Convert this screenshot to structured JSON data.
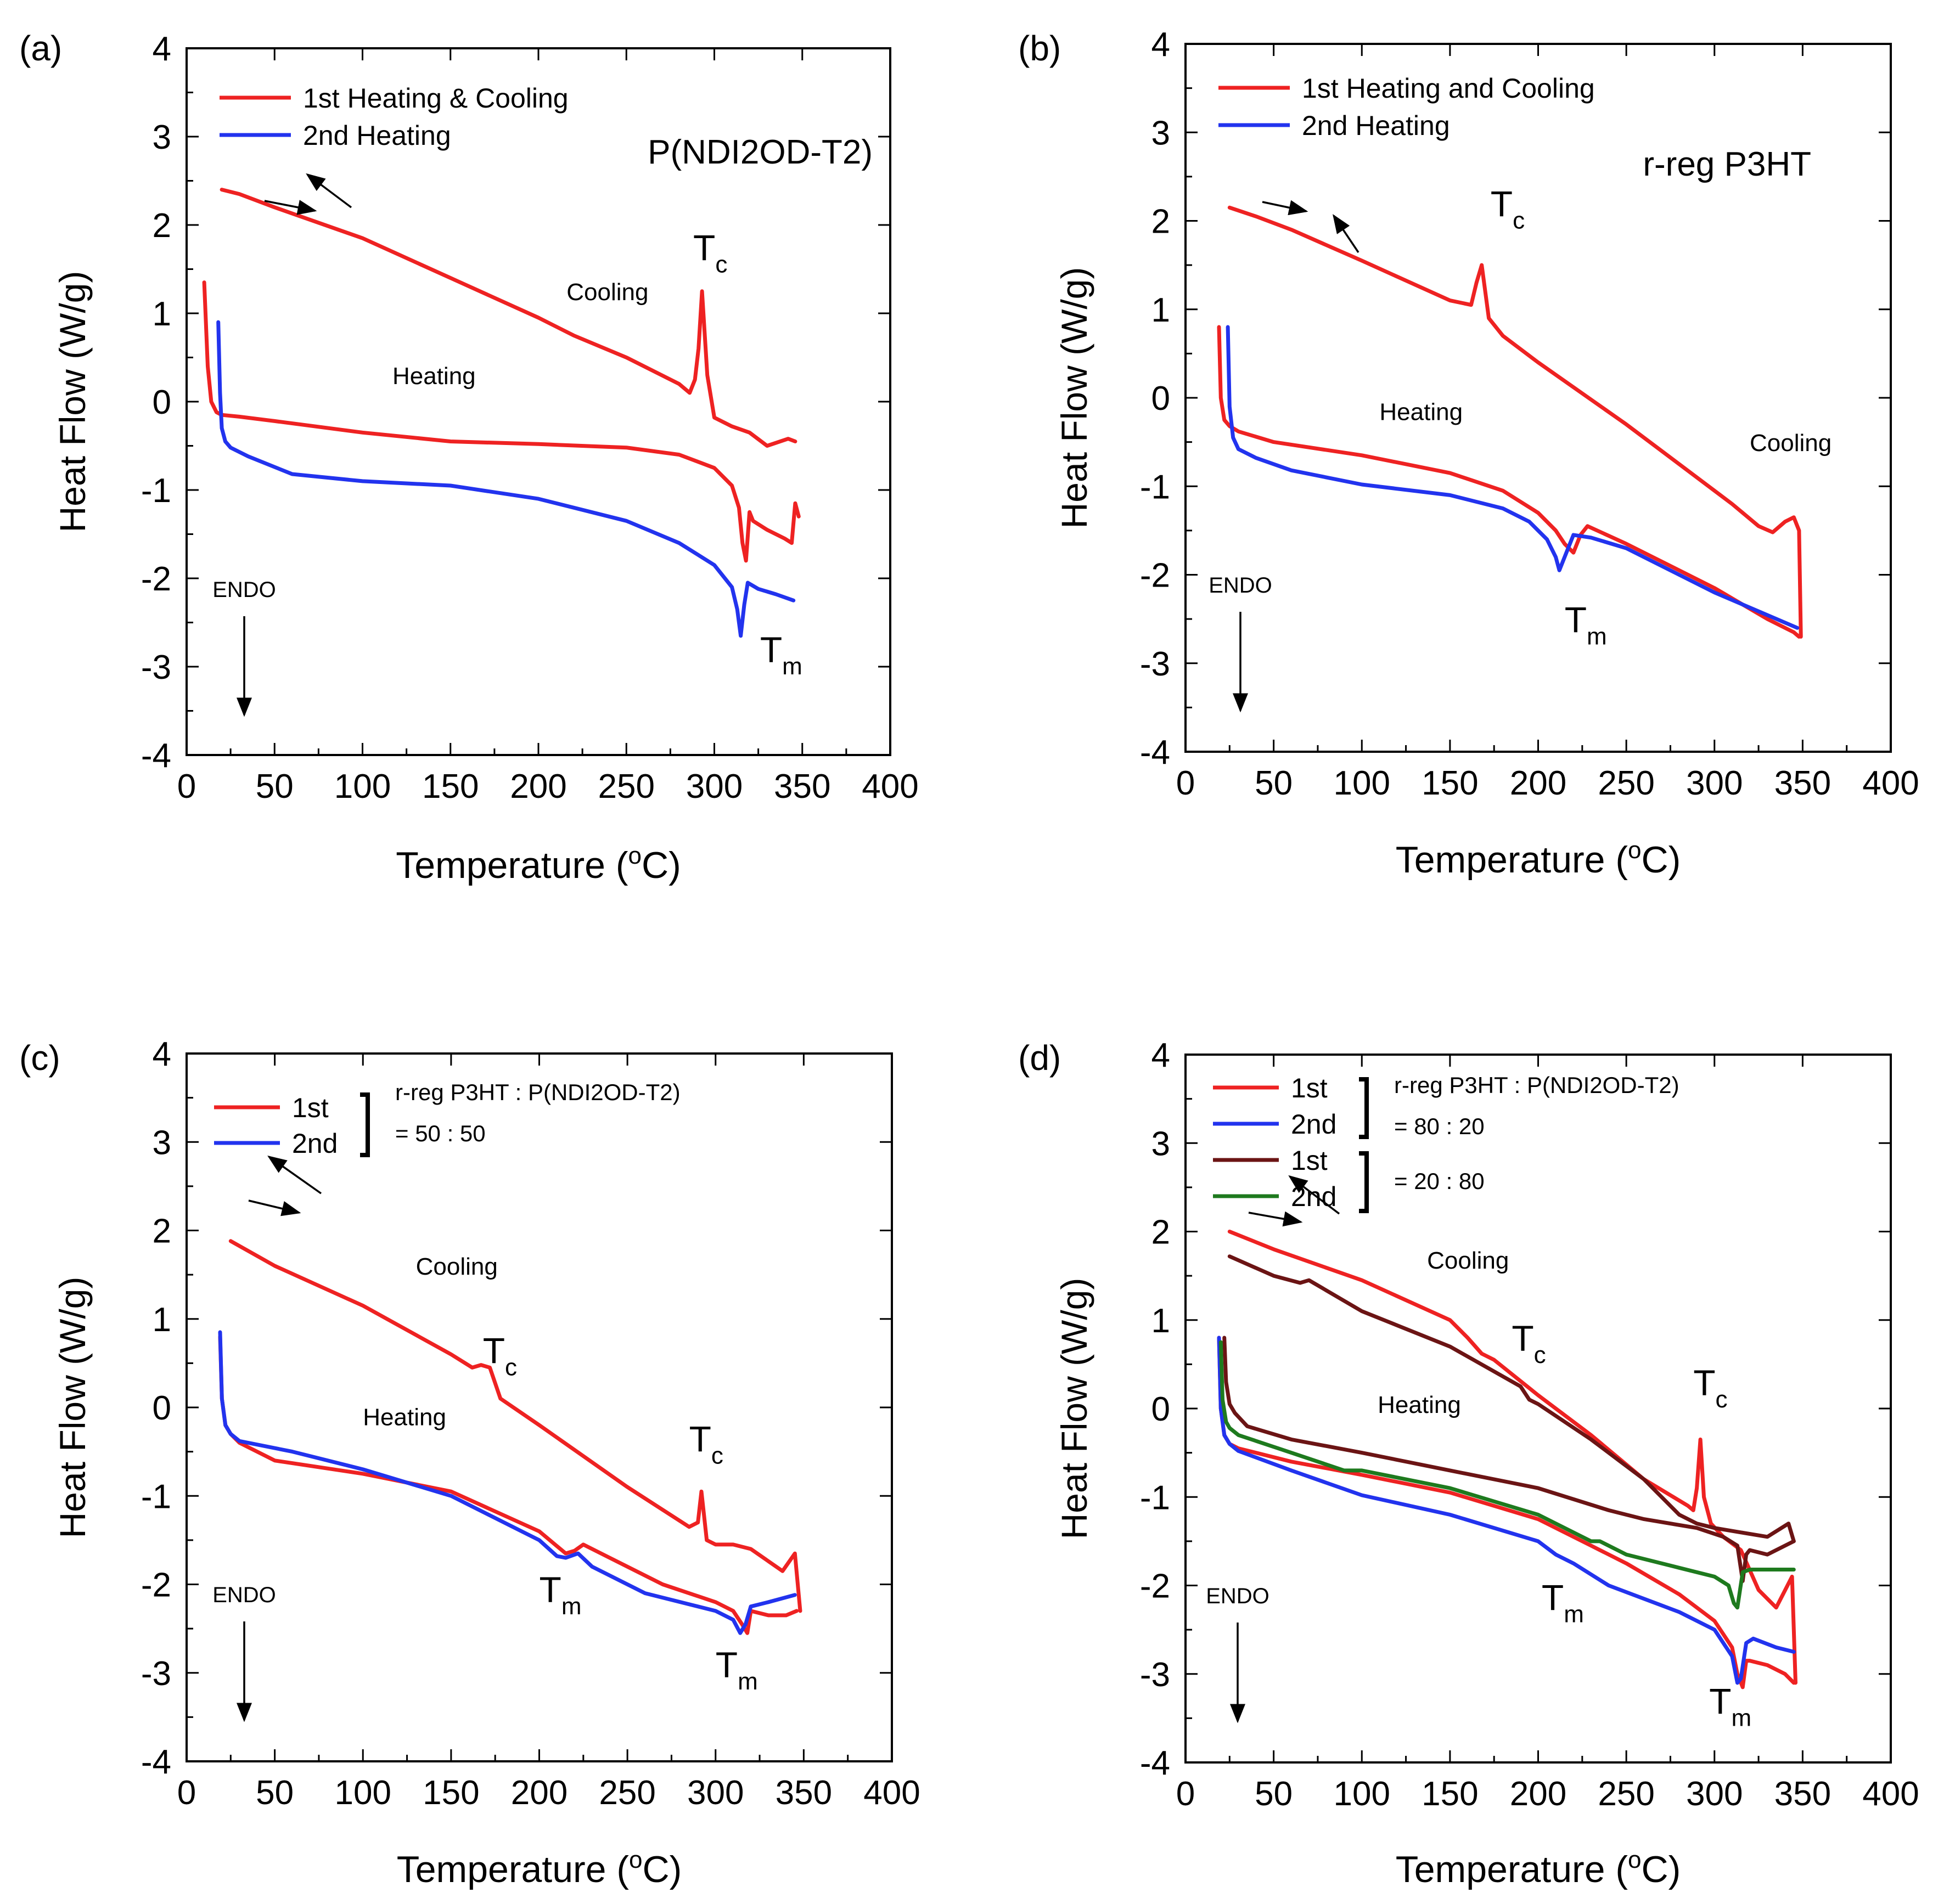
{
  "figure": {
    "description_free": true
  },
  "common": {
    "ylabel": "Heat Flow (W/g)",
    "xlabel_prefix": "Temperature (",
    "xlabel_degree": "o",
    "xlabel_suffix": "C)",
    "endo_label": "ENDO",
    "colors": {
      "red": "#ee2222",
      "blue": "#2233ee",
      "darkred": "#6b1414",
      "green": "#1e7a1e"
    }
  },
  "chart_data": [
    {
      "id": "a",
      "panel_label": "(a)",
      "type": "line",
      "title": "P(NDI2OD-T2)",
      "xlim": [
        0,
        400
      ],
      "ylim": [
        -4,
        4
      ],
      "xticks": [
        0,
        50,
        100,
        150,
        200,
        250,
        300,
        350,
        400
      ],
      "yticks": [
        4,
        3,
        2,
        1,
        0,
        -1,
        -2,
        -3,
        -4
      ],
      "legend": [
        {
          "label": "1st Heating & Cooling",
          "color": "#ee2222"
        },
        {
          "label": "2nd Heating",
          "color": "#2233ee"
        }
      ],
      "series": [
        {
          "name": "1st Heating (red)",
          "color": "#ee2222",
          "x": [
            10,
            12,
            14,
            17,
            20,
            30,
            50,
            100,
            150,
            200,
            250,
            280,
            300,
            310,
            314,
            316,
            318,
            320,
            322,
            330,
            340,
            344,
            346,
            348
          ],
          "y": [
            1.35,
            0.4,
            0.0,
            -0.12,
            -0.15,
            -0.17,
            -0.22,
            -0.35,
            -0.45,
            -0.48,
            -0.52,
            -0.6,
            -0.75,
            -0.95,
            -1.2,
            -1.6,
            -1.8,
            -1.25,
            -1.35,
            -1.45,
            -1.55,
            -1.6,
            -1.15,
            -1.3
          ]
        },
        {
          "name": "1st Cooling (red)",
          "color": "#ee2222",
          "x": [
            346,
            342,
            330,
            320,
            310,
            300,
            296,
            293,
            291,
            289,
            286,
            280,
            250,
            220,
            200,
            150,
            100,
            50,
            30,
            20
          ],
          "y": [
            -0.45,
            -0.42,
            -0.5,
            -0.35,
            -0.28,
            -0.18,
            0.3,
            1.25,
            0.6,
            0.25,
            0.1,
            0.2,
            0.5,
            0.75,
            0.95,
            1.4,
            1.85,
            2.2,
            2.35,
            2.4
          ]
        },
        {
          "name": "2nd Heating (blue)",
          "color": "#2233ee",
          "x": [
            18,
            19,
            20,
            22,
            25,
            35,
            60,
            100,
            150,
            200,
            250,
            280,
            300,
            310,
            313,
            315,
            317,
            319,
            325,
            335,
            345
          ],
          "y": [
            0.9,
            0.1,
            -0.3,
            -0.45,
            -0.52,
            -0.62,
            -0.82,
            -0.9,
            -0.95,
            -1.1,
            -1.35,
            -1.6,
            -1.85,
            -2.1,
            -2.35,
            -2.65,
            -2.3,
            -2.05,
            -2.12,
            -2.18,
            -2.25
          ]
        }
      ],
      "annotations": [
        {
          "text": "Cooling",
          "x": 216,
          "y": 1.15
        },
        {
          "text": "Heating",
          "x": 117,
          "y": 0.2
        },
        {
          "text": "T",
          "sub": "c",
          "x": 288,
          "y": 1.6
        },
        {
          "text": "T",
          "sub": "m",
          "x": 326,
          "y": -2.95
        }
      ]
    },
    {
      "id": "b",
      "panel_label": "(b)",
      "type": "line",
      "title": "r-reg P3HT",
      "xlim": [
        0,
        400
      ],
      "ylim": [
        -4,
        4
      ],
      "xticks": [
        0,
        50,
        100,
        150,
        200,
        250,
        300,
        350,
        400
      ],
      "yticks": [
        4,
        3,
        2,
        1,
        0,
        -1,
        -2,
        -3,
        -4
      ],
      "legend": [
        {
          "label": "1st Heating and Cooling",
          "color": "#ee2222"
        },
        {
          "label": "2nd Heating",
          "color": "#2233ee"
        }
      ],
      "series": [
        {
          "name": "1st Heating (red)",
          "color": "#ee2222",
          "x": [
            19,
            20,
            22,
            25,
            30,
            50,
            100,
            150,
            180,
            200,
            210,
            215,
            220,
            224,
            228,
            250,
            300,
            330,
            345,
            348
          ],
          "y": [
            0.8,
            0.0,
            -0.25,
            -0.32,
            -0.38,
            -0.5,
            -0.65,
            -0.85,
            -1.05,
            -1.3,
            -1.5,
            -1.65,
            -1.75,
            -1.55,
            -1.45,
            -1.65,
            -2.15,
            -2.5,
            -2.65,
            -2.7
          ]
        },
        {
          "name": "1st Cooling (red)",
          "color": "#ee2222",
          "x": [
            349,
            348,
            345,
            340,
            333,
            325,
            310,
            300,
            250,
            200,
            180,
            172,
            168,
            165,
            162,
            150,
            100,
            60,
            40,
            25
          ],
          "y": [
            -2.7,
            -1.5,
            -1.35,
            -1.4,
            -1.52,
            -1.45,
            -1.2,
            -1.05,
            -0.3,
            0.4,
            0.7,
            0.9,
            1.5,
            1.3,
            1.05,
            1.1,
            1.55,
            1.9,
            2.05,
            2.15
          ]
        },
        {
          "name": "2nd Heating (blue)",
          "color": "#2233ee",
          "x": [
            24,
            25,
            27,
            30,
            40,
            60,
            100,
            150,
            180,
            195,
            205,
            210,
            212,
            215,
            220,
            230,
            250,
            300,
            347
          ],
          "y": [
            0.8,
            -0.1,
            -0.45,
            -0.58,
            -0.68,
            -0.82,
            -0.98,
            -1.1,
            -1.25,
            -1.4,
            -1.6,
            -1.8,
            -1.95,
            -1.8,
            -1.55,
            -1.58,
            -1.7,
            -2.2,
            -2.6
          ]
        }
      ],
      "annotations": [
        {
          "text": "Cooling",
          "x": 320,
          "y": -0.6
        },
        {
          "text": "Heating",
          "x": 110,
          "y": -0.25
        },
        {
          "text": "T",
          "sub": "c",
          "x": 173,
          "y": 2.05
        },
        {
          "text": "T",
          "sub": "m",
          "x": 215,
          "y": -2.65
        }
      ]
    },
    {
      "id": "c",
      "panel_label": "(c)",
      "type": "line",
      "title": "",
      "xlim": [
        0,
        400
      ],
      "ylim": [
        -4,
        4
      ],
      "xticks": [
        0,
        50,
        100,
        150,
        200,
        250,
        300,
        350,
        400
      ],
      "yticks": [
        4,
        3,
        2,
        1,
        0,
        -1,
        -2,
        -3,
        -4
      ],
      "legend": [
        {
          "label": "1st",
          "color": "#ee2222"
        },
        {
          "label": "2nd",
          "color": "#2233ee"
        }
      ],
      "bracket_texts": [
        "r-reg P3HT : P(NDI2OD-T2)",
        "= 50 : 50"
      ],
      "series": [
        {
          "name": "1st Heating (red)",
          "color": "#ee2222",
          "x": [
            19,
            20,
            22,
            25,
            30,
            50,
            100,
            150,
            200,
            215,
            220,
            225,
            240,
            270,
            300,
            310,
            315,
            318,
            320,
            330,
            340,
            346
          ],
          "y": [
            0.8,
            0.1,
            -0.2,
            -0.3,
            -0.4,
            -0.6,
            -0.75,
            -0.95,
            -1.4,
            -1.65,
            -1.62,
            -1.55,
            -1.7,
            -2.0,
            -2.2,
            -2.3,
            -2.45,
            -2.55,
            -2.3,
            -2.35,
            -2.35,
            -2.3
          ]
        },
        {
          "name": "1st Cooling (red)",
          "color": "#ee2222",
          "x": [
            348,
            345,
            338,
            320,
            310,
            300,
            295,
            292,
            290,
            285,
            250,
            200,
            178,
            172,
            167,
            162,
            150,
            100,
            50,
            25
          ],
          "y": [
            -2.3,
            -1.65,
            -1.85,
            -1.6,
            -1.55,
            -1.55,
            -1.5,
            -0.95,
            -1.3,
            -1.35,
            -0.9,
            -0.2,
            0.1,
            0.45,
            0.48,
            0.45,
            0.6,
            1.15,
            1.6,
            1.88
          ]
        },
        {
          "name": "2nd Heating (blue)",
          "color": "#2233ee",
          "x": [
            19,
            20,
            22,
            25,
            30,
            60,
            100,
            150,
            200,
            210,
            215,
            222,
            230,
            260,
            300,
            310,
            314,
            317,
            320,
            330,
            345
          ],
          "y": [
            0.85,
            0.1,
            -0.2,
            -0.3,
            -0.38,
            -0.5,
            -0.7,
            -1.0,
            -1.5,
            -1.68,
            -1.7,
            -1.65,
            -1.8,
            -2.1,
            -2.3,
            -2.4,
            -2.55,
            -2.45,
            -2.25,
            -2.2,
            -2.12
          ]
        }
      ],
      "annotations": [
        {
          "text": "Cooling",
          "x": 130,
          "y": 1.5
        },
        {
          "text": "Heating",
          "x": 100,
          "y": -0.2
        },
        {
          "text": "T",
          "sub": "c",
          "x": 168,
          "y": 0.5
        },
        {
          "text": "T",
          "sub": "c",
          "x": 285,
          "y": -0.5
        },
        {
          "text": "T",
          "sub": "m",
          "x": 200,
          "y": -2.2
        },
        {
          "text": "T",
          "sub": "m",
          "x": 300,
          "y": -3.05
        }
      ]
    },
    {
      "id": "d",
      "panel_label": "(d)",
      "type": "line",
      "title": "",
      "xlim": [
        0,
        400
      ],
      "ylim": [
        -4,
        4
      ],
      "xticks": [
        0,
        50,
        100,
        150,
        200,
        250,
        300,
        350,
        400
      ],
      "yticks": [
        4,
        3,
        2,
        1,
        0,
        -1,
        -2,
        -3,
        -4
      ],
      "legend": [
        {
          "label": "1st",
          "color": "#ee2222"
        },
        {
          "label": "2nd",
          "color": "#2233ee"
        },
        {
          "label": "1st",
          "color": "#6b1414"
        },
        {
          "label": "2nd",
          "color": "#1e7a1e"
        }
      ],
      "bracket_texts": [
        "r-reg P3HT : P(NDI2OD-T2)",
        "= 80 : 20",
        "= 20 : 80"
      ],
      "series": [
        {
          "name": "80:20 1st Heating (red)",
          "color": "#ee2222",
          "x": [
            19,
            20,
            22,
            25,
            30,
            60,
            100,
            150,
            200,
            230,
            250,
            280,
            300,
            310,
            313,
            316,
            318,
            320,
            330,
            340,
            345
          ],
          "y": [
            0.8,
            0.0,
            -0.3,
            -0.4,
            -0.45,
            -0.6,
            -0.75,
            -0.95,
            -1.25,
            -1.55,
            -1.75,
            -2.1,
            -2.4,
            -2.7,
            -3.0,
            -3.15,
            -2.85,
            -2.85,
            -2.9,
            -3.0,
            -3.1
          ]
        },
        {
          "name": "80:20 1st Cooling (red)",
          "color": "#ee2222",
          "x": [
            346,
            344,
            335,
            325,
            315,
            305,
            298,
            294,
            292,
            290,
            288,
            285,
            260,
            230,
            200,
            175,
            168,
            160,
            150,
            100,
            50,
            25
          ],
          "y": [
            -3.1,
            -1.9,
            -2.25,
            -2.05,
            -1.6,
            -1.45,
            -1.3,
            -1.0,
            -0.35,
            -0.9,
            -1.15,
            -1.1,
            -0.8,
            -0.3,
            0.15,
            0.55,
            0.62,
            0.8,
            1.0,
            1.45,
            1.8,
            2.0
          ]
        },
        {
          "name": "80:20 2nd Heating (blue)",
          "color": "#2233ee",
          "x": [
            19,
            20,
            22,
            25,
            30,
            60,
            100,
            150,
            200,
            210,
            220,
            240,
            280,
            300,
            310,
            313,
            315,
            318,
            322,
            335,
            345
          ],
          "y": [
            0.8,
            0.0,
            -0.3,
            -0.4,
            -0.48,
            -0.7,
            -0.98,
            -1.2,
            -1.5,
            -1.65,
            -1.75,
            -2.0,
            -2.3,
            -2.5,
            -2.8,
            -3.1,
            -3.05,
            -2.65,
            -2.6,
            -2.7,
            -2.75
          ]
        },
        {
          "name": "20:80 1st Heating (dark red)",
          "color": "#6b1414",
          "x": [
            22,
            23,
            25,
            28,
            35,
            60,
            100,
            150,
            200,
            240,
            260,
            290,
            305,
            313,
            316,
            318,
            320,
            330,
            345
          ],
          "y": [
            0.8,
            0.3,
            0.05,
            -0.05,
            -0.2,
            -0.35,
            -0.5,
            -0.7,
            -0.9,
            -1.15,
            -1.25,
            -1.35,
            -1.45,
            -1.55,
            -1.95,
            -1.65,
            -1.6,
            -1.65,
            -1.5
          ]
        },
        {
          "name": "20:80 1st Cooling (dark red)",
          "color": "#6b1414",
          "x": [
            345,
            342,
            330,
            315,
            300,
            290,
            280,
            260,
            230,
            200,
            195,
            190,
            150,
            100,
            70,
            65,
            50,
            25
          ],
          "y": [
            -1.5,
            -1.3,
            -1.45,
            -1.4,
            -1.35,
            -1.3,
            -1.2,
            -0.8,
            -0.35,
            0.05,
            0.1,
            0.25,
            0.7,
            1.1,
            1.45,
            1.42,
            1.5,
            1.72
          ]
        },
        {
          "name": "20:80 2nd Heating (green)",
          "color": "#1e7a1e",
          "x": [
            20,
            21,
            23,
            25,
            30,
            60,
            90,
            100,
            150,
            200,
            230,
            235,
            250,
            280,
            300,
            308,
            311,
            313,
            316,
            320,
            345
          ],
          "y": [
            0.75,
            0.1,
            -0.15,
            -0.22,
            -0.3,
            -0.5,
            -0.7,
            -0.7,
            -0.9,
            -1.2,
            -1.5,
            -1.5,
            -1.65,
            -1.8,
            -1.9,
            -2.0,
            -2.2,
            -2.25,
            -1.85,
            -1.82,
            -1.82
          ]
        }
      ],
      "annotations": [
        {
          "text": "Cooling",
          "x": 137,
          "y": 1.58
        },
        {
          "text": "Heating",
          "x": 109,
          "y": -0.05
        },
        {
          "text": "T",
          "sub": "c",
          "x": 185,
          "y": 0.65
        },
        {
          "text": "T",
          "sub": "c",
          "x": 288,
          "y": 0.15
        },
        {
          "text": "T",
          "sub": "m",
          "x": 202,
          "y": -2.28
        },
        {
          "text": "T",
          "sub": "m",
          "x": 297,
          "y": -3.45
        }
      ]
    }
  ]
}
